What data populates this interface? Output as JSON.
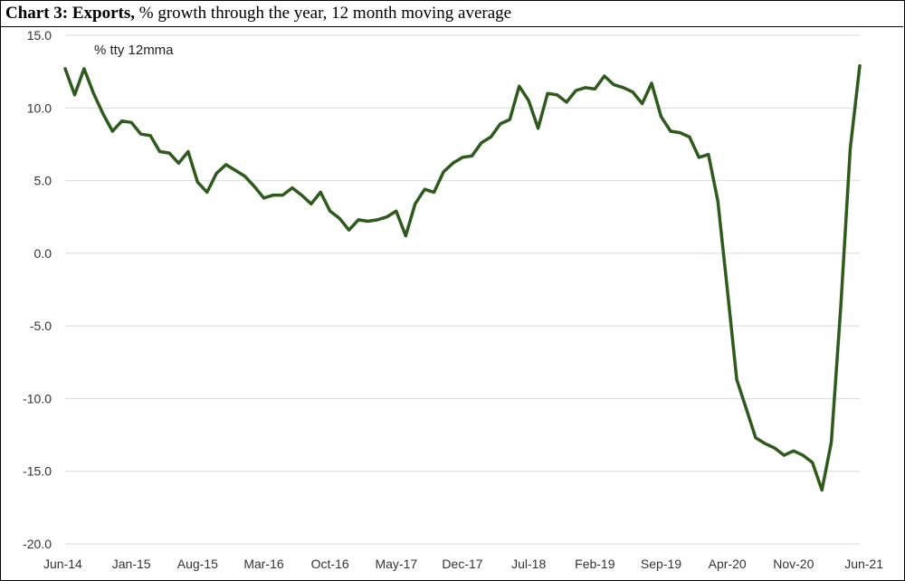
{
  "title": {
    "bold_part": "Chart 3: Exports,",
    "rest": " % growth through the year, 12 month moving average"
  },
  "chart_data": {
    "type": "line",
    "title": "Chart 3: Exports, % growth through the year, 12 month moving average",
    "annotation": "% tty 12mma",
    "ylim": [
      -20,
      15
    ],
    "y_ticks": [
      "15.0",
      "10.0",
      "5.0",
      "0.0",
      "-5.0",
      "-10.0",
      "-15.0",
      "-20.0"
    ],
    "y_tick_values": [
      15,
      10,
      5,
      0,
      -5,
      -10,
      -15,
      -20
    ],
    "x_tick_labels": [
      "Jun-14",
      "Jan-15",
      "Aug-15",
      "Mar-16",
      "Oct-16",
      "May-17",
      "Dec-17",
      "Jul-18",
      "Feb-19",
      "Sep-19",
      "Apr-20",
      "Nov-20",
      "Jun-21"
    ],
    "x_tick_indices": [
      0,
      7,
      14,
      21,
      28,
      35,
      42,
      49,
      56,
      63,
      70,
      77,
      84
    ],
    "grid": true,
    "line_color": "#2e5a1c",
    "series": [
      {
        "values": [
          12.7,
          10.9,
          12.7,
          11.0,
          9.6,
          8.4,
          9.1,
          9.0,
          8.2,
          8.1,
          7.0,
          6.9,
          6.2,
          7.0,
          4.9,
          4.2,
          5.5,
          6.1,
          5.7,
          5.3,
          4.6,
          3.8,
          4.0,
          4.0,
          4.5,
          4.0,
          3.4,
          4.2,
          2.9,
          2.4,
          1.6,
          2.3,
          2.2,
          2.3,
          2.5,
          2.9,
          1.2,
          3.4,
          4.4,
          4.2,
          5.6,
          6.2,
          6.6,
          6.7,
          7.6,
          8.0,
          8.9,
          9.2,
          11.5,
          10.5,
          8.6,
          11.0,
          10.9,
          10.4,
          11.2,
          11.4,
          11.3,
          12.2,
          11.6,
          11.4,
          11.1,
          10.3,
          11.7,
          9.4,
          8.4,
          8.3,
          8.0,
          6.6,
          6.8,
          3.6,
          -2.5,
          -8.7,
          -10.7,
          -12.7,
          -13.1,
          -13.4,
          -13.9,
          -13.6,
          -13.9,
          -14.4,
          -16.3,
          -13.0,
          -3.6,
          7.2,
          12.9
        ]
      }
    ]
  }
}
